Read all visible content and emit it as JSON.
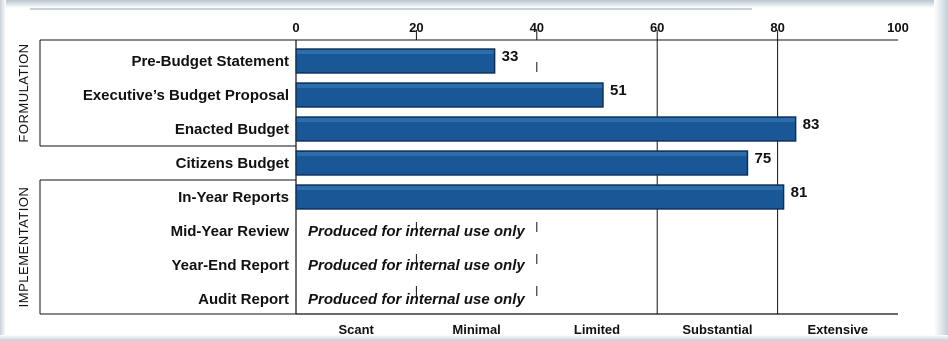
{
  "chart_data": {
    "type": "bar",
    "orientation": "horizontal",
    "xlim": [
      0,
      100
    ],
    "x_ticks": [
      0,
      20,
      40,
      60,
      80,
      100
    ],
    "groups": [
      {
        "label": "FORMULATION",
        "categories": [
          "Pre-Budget Statement",
          "Executive’s Budget Proposal",
          "Enacted Budget"
        ]
      },
      {
        "label": "IMPLEMENTATION",
        "categories": [
          "In-Year Reports",
          "Mid-Year Review",
          "Year-End Report",
          "Audit Report"
        ]
      }
    ],
    "categories": [
      "Pre-Budget Statement",
      "Executive’s Budget Proposal",
      "Enacted Budget",
      "Citizens Budget",
      "In-Year Reports",
      "Mid-Year Review",
      "Year-End Report",
      "Audit Report"
    ],
    "values": [
      33,
      51,
      83,
      75,
      81,
      null,
      null,
      null
    ],
    "bar_labels": [
      "33",
      "51",
      "83",
      "75",
      "81",
      "",
      "",
      ""
    ],
    "notes": [
      "",
      "",
      "",
      "",
      "",
      "Produced for internal use only",
      "Produced for internal use only",
      "Produced for internal use only"
    ],
    "bands": [
      {
        "label": "Scant",
        "range": [
          0,
          20
        ]
      },
      {
        "label": "Minimal",
        "range": [
          20,
          40
        ]
      },
      {
        "label": "Limited",
        "range": [
          40,
          60
        ]
      },
      {
        "label": "Substantial",
        "range": [
          60,
          80
        ]
      },
      {
        "label": "Extensive",
        "range": [
          80,
          100
        ]
      }
    ],
    "bar_color": "#1a5796",
    "bar_outline": "#0b2f57",
    "grid": true
  }
}
